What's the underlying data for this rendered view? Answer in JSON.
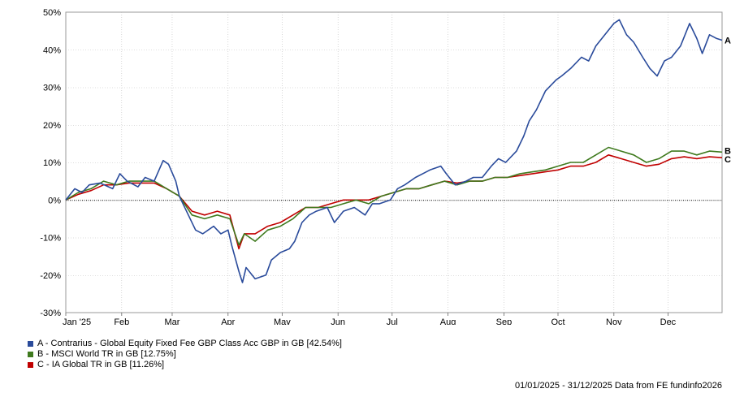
{
  "chart_data": {
    "type": "line",
    "title": "",
    "xlabel": "",
    "ylabel": "",
    "ylim": [
      -30,
      50
    ],
    "y_ticks": [
      -30,
      -20,
      -10,
      0,
      10,
      20,
      30,
      40,
      50
    ],
    "y_tick_labels": [
      "-30%",
      "-20%",
      "-10%",
      "0%",
      "10%",
      "20%",
      "30%",
      "40%",
      "50%"
    ],
    "grid": true,
    "zero_line": "dotted",
    "x_tick_labels": [
      "Jan '25",
      "Feb",
      "Mar",
      "Apr",
      "May",
      "Jun",
      "Jul",
      "Aug",
      "Sep",
      "Oct",
      "Nov",
      "Dec"
    ],
    "legend_position": "bottom-left",
    "series": [
      {
        "name": "A - Contrarius - Global Equity Fixed Fee GBP Class Acc GBP in GB [42.54%]",
        "end_label": "A",
        "color": "#2a4b9b",
        "points": [
          [
            "2025-01-01",
            0
          ],
          [
            "2025-01-06",
            3
          ],
          [
            "2025-01-10",
            2
          ],
          [
            "2025-01-14",
            4
          ],
          [
            "2025-01-20",
            4.5
          ],
          [
            "2025-01-27",
            3
          ],
          [
            "2025-01-31",
            7
          ],
          [
            "2025-02-04",
            5
          ],
          [
            "2025-02-10",
            3.5
          ],
          [
            "2025-02-14",
            6
          ],
          [
            "2025-02-19",
            5
          ],
          [
            "2025-02-24",
            10.5
          ],
          [
            "2025-02-27",
            9.5
          ],
          [
            "2025-03-03",
            5
          ],
          [
            "2025-03-05",
            1
          ],
          [
            "2025-03-10",
            -4
          ],
          [
            "2025-03-14",
            -8
          ],
          [
            "2025-03-18",
            -9
          ],
          [
            "2025-03-24",
            -7
          ],
          [
            "2025-03-28",
            -9
          ],
          [
            "2025-04-01",
            -8
          ],
          [
            "2025-04-03",
            -12
          ],
          [
            "2025-04-07",
            -19
          ],
          [
            "2025-04-09",
            -22
          ],
          [
            "2025-04-11",
            -18
          ],
          [
            "2025-04-16",
            -21
          ],
          [
            "2025-04-22",
            -20
          ],
          [
            "2025-04-25",
            -16
          ],
          [
            "2025-04-30",
            -14
          ],
          [
            "2025-05-05",
            -13
          ],
          [
            "2025-05-08",
            -11
          ],
          [
            "2025-05-12",
            -6
          ],
          [
            "2025-05-16",
            -4
          ],
          [
            "2025-05-20",
            -3
          ],
          [
            "2025-05-26",
            -2
          ],
          [
            "2025-05-30",
            -6
          ],
          [
            "2025-06-04",
            -3
          ],
          [
            "2025-06-10",
            -2
          ],
          [
            "2025-06-16",
            -4
          ],
          [
            "2025-06-20",
            -1
          ],
          [
            "2025-06-24",
            -1
          ],
          [
            "2025-06-30",
            0
          ],
          [
            "2025-07-04",
            3
          ],
          [
            "2025-07-08",
            4
          ],
          [
            "2025-07-14",
            6
          ],
          [
            "2025-07-18",
            7
          ],
          [
            "2025-07-22",
            8
          ],
          [
            "2025-07-28",
            9
          ],
          [
            "2025-07-31",
            7
          ],
          [
            "2025-08-05",
            4
          ],
          [
            "2025-08-11",
            5
          ],
          [
            "2025-08-15",
            6
          ],
          [
            "2025-08-20",
            6
          ],
          [
            "2025-08-25",
            9
          ],
          [
            "2025-08-29",
            11
          ],
          [
            "2025-09-02",
            10
          ],
          [
            "2025-09-08",
            13
          ],
          [
            "2025-09-12",
            17
          ],
          [
            "2025-09-15",
            21
          ],
          [
            "2025-09-19",
            24
          ],
          [
            "2025-09-24",
            29
          ],
          [
            "2025-09-30",
            32
          ],
          [
            "2025-10-03",
            33
          ],
          [
            "2025-10-08",
            35
          ],
          [
            "2025-10-14",
            38
          ],
          [
            "2025-10-18",
            37
          ],
          [
            "2025-10-22",
            41
          ],
          [
            "2025-10-27",
            44
          ],
          [
            "2025-11-01",
            47
          ],
          [
            "2025-11-04",
            48
          ],
          [
            "2025-11-08",
            44
          ],
          [
            "2025-11-12",
            42
          ],
          [
            "2025-11-17",
            38
          ],
          [
            "2025-11-21",
            35
          ],
          [
            "2025-11-25",
            33
          ],
          [
            "2025-11-29",
            37
          ],
          [
            "2025-12-03",
            38
          ],
          [
            "2025-12-08",
            41
          ],
          [
            "2025-12-13",
            47
          ],
          [
            "2025-12-17",
            43
          ],
          [
            "2025-12-20",
            39
          ],
          [
            "2025-12-24",
            44
          ],
          [
            "2025-12-28",
            43
          ],
          [
            "2025-12-31",
            42.54
          ]
        ]
      },
      {
        "name": "B - MSCI World TR in GB [12.75%]",
        "end_label": "B",
        "color": "#3f7a1e",
        "points": [
          [
            "2025-01-01",
            0
          ],
          [
            "2025-01-08",
            2
          ],
          [
            "2025-01-15",
            3
          ],
          [
            "2025-01-22",
            5
          ],
          [
            "2025-01-29",
            4
          ],
          [
            "2025-02-05",
            5
          ],
          [
            "2025-02-12",
            5
          ],
          [
            "2025-02-19",
            5
          ],
          [
            "2025-02-26",
            3
          ],
          [
            "2025-03-05",
            1
          ],
          [
            "2025-03-12",
            -4
          ],
          [
            "2025-03-19",
            -5
          ],
          [
            "2025-03-26",
            -4
          ],
          [
            "2025-04-02",
            -5
          ],
          [
            "2025-04-07",
            -12
          ],
          [
            "2025-04-10",
            -9
          ],
          [
            "2025-04-16",
            -11
          ],
          [
            "2025-04-23",
            -8
          ],
          [
            "2025-04-30",
            -7
          ],
          [
            "2025-05-07",
            -5
          ],
          [
            "2025-05-14",
            -2
          ],
          [
            "2025-05-21",
            -2
          ],
          [
            "2025-05-28",
            -2
          ],
          [
            "2025-06-04",
            -1
          ],
          [
            "2025-06-11",
            0
          ],
          [
            "2025-06-18",
            -1
          ],
          [
            "2025-06-25",
            1
          ],
          [
            "2025-07-02",
            2
          ],
          [
            "2025-07-09",
            3
          ],
          [
            "2025-07-16",
            3
          ],
          [
            "2025-07-23",
            4
          ],
          [
            "2025-07-30",
            5
          ],
          [
            "2025-08-06",
            4
          ],
          [
            "2025-08-13",
            5
          ],
          [
            "2025-08-20",
            5
          ],
          [
            "2025-08-27",
            6
          ],
          [
            "2025-09-03",
            6
          ],
          [
            "2025-09-10",
            7
          ],
          [
            "2025-09-17",
            7.5
          ],
          [
            "2025-09-24",
            8
          ],
          [
            "2025-10-01",
            9
          ],
          [
            "2025-10-08",
            10
          ],
          [
            "2025-10-15",
            10
          ],
          [
            "2025-10-22",
            12
          ],
          [
            "2025-10-29",
            14
          ],
          [
            "2025-11-05",
            13
          ],
          [
            "2025-11-12",
            12
          ],
          [
            "2025-11-19",
            10
          ],
          [
            "2025-11-26",
            11
          ],
          [
            "2025-12-03",
            13
          ],
          [
            "2025-12-10",
            13
          ],
          [
            "2025-12-17",
            12
          ],
          [
            "2025-12-24",
            13
          ],
          [
            "2025-12-31",
            12.75
          ]
        ]
      },
      {
        "name": "C - IA Global TR in GB [11.26%]",
        "end_label": "C",
        "color": "#c00000",
        "points": [
          [
            "2025-01-01",
            0
          ],
          [
            "2025-01-08",
            1.5
          ],
          [
            "2025-01-15",
            2.5
          ],
          [
            "2025-01-22",
            4
          ],
          [
            "2025-01-29",
            4
          ],
          [
            "2025-02-05",
            4.5
          ],
          [
            "2025-02-12",
            4.5
          ],
          [
            "2025-02-19",
            4.5
          ],
          [
            "2025-02-26",
            3
          ],
          [
            "2025-03-05",
            1
          ],
          [
            "2025-03-12",
            -3
          ],
          [
            "2025-03-19",
            -4
          ],
          [
            "2025-03-26",
            -3
          ],
          [
            "2025-04-02",
            -4
          ],
          [
            "2025-04-07",
            -13
          ],
          [
            "2025-04-10",
            -9
          ],
          [
            "2025-04-16",
            -9
          ],
          [
            "2025-04-23",
            -7
          ],
          [
            "2025-04-30",
            -6
          ],
          [
            "2025-05-07",
            -4
          ],
          [
            "2025-05-14",
            -2
          ],
          [
            "2025-05-21",
            -2
          ],
          [
            "2025-05-28",
            -1
          ],
          [
            "2025-06-04",
            0
          ],
          [
            "2025-06-11",
            0
          ],
          [
            "2025-06-18",
            0
          ],
          [
            "2025-06-25",
            1
          ],
          [
            "2025-07-02",
            2
          ],
          [
            "2025-07-09",
            3
          ],
          [
            "2025-07-16",
            3
          ],
          [
            "2025-07-23",
            4
          ],
          [
            "2025-07-30",
            5
          ],
          [
            "2025-08-06",
            4.5
          ],
          [
            "2025-08-13",
            5
          ],
          [
            "2025-08-20",
            5
          ],
          [
            "2025-08-27",
            6
          ],
          [
            "2025-09-03",
            6
          ],
          [
            "2025-09-10",
            6.5
          ],
          [
            "2025-09-17",
            7
          ],
          [
            "2025-09-24",
            7.5
          ],
          [
            "2025-10-01",
            8
          ],
          [
            "2025-10-08",
            9
          ],
          [
            "2025-10-15",
            9
          ],
          [
            "2025-10-22",
            10
          ],
          [
            "2025-10-29",
            12
          ],
          [
            "2025-11-05",
            11
          ],
          [
            "2025-11-12",
            10
          ],
          [
            "2025-11-19",
            9
          ],
          [
            "2025-11-26",
            9.5
          ],
          [
            "2025-12-03",
            11
          ],
          [
            "2025-12-10",
            11.5
          ],
          [
            "2025-12-17",
            11
          ],
          [
            "2025-12-24",
            11.5
          ],
          [
            "2025-12-31",
            11.26
          ]
        ]
      }
    ]
  },
  "footer": {
    "date_range": "01/01/2025 - 31/12/2025",
    "source": "Data from FE fundinfo2026"
  }
}
